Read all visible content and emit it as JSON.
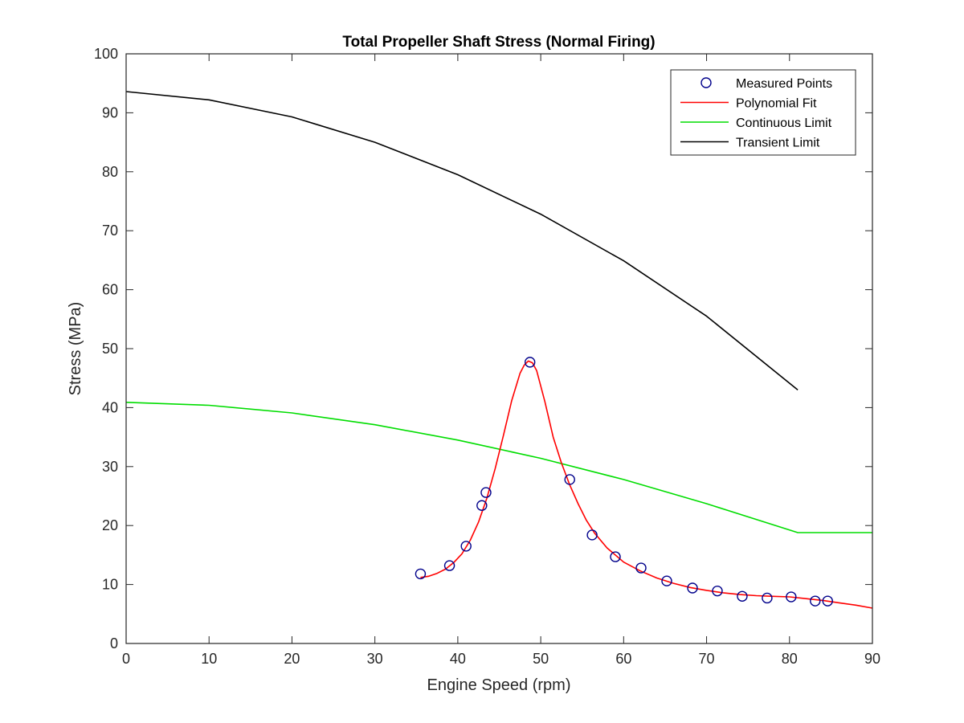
{
  "chart_data": {
    "type": "line",
    "title": "Total Propeller Shaft Stress (Normal Firing)",
    "xlabel": "Engine Speed (rpm)",
    "ylabel": "Stress (MPa)",
    "xlim": [
      0,
      90
    ],
    "ylim": [
      0,
      100
    ],
    "xticks": [
      0,
      10,
      20,
      30,
      40,
      50,
      60,
      70,
      80,
      90
    ],
    "yticks": [
      0,
      10,
      20,
      30,
      40,
      50,
      60,
      70,
      80,
      90,
      100
    ],
    "grid": false,
    "legend_position": "top-right",
    "series": [
      {
        "name": "Measured Points",
        "type": "scatter",
        "marker": "circle",
        "color": "#00008B",
        "x": [
          35.5,
          39.0,
          41.0,
          42.9,
          43.4,
          48.7,
          53.5,
          56.2,
          59.0,
          62.1,
          65.2,
          68.3,
          71.3,
          74.3,
          77.3,
          80.2,
          83.1,
          84.6
        ],
        "y": [
          11.8,
          13.2,
          16.5,
          23.4,
          25.6,
          47.7,
          27.8,
          18.4,
          14.7,
          12.8,
          10.6,
          9.4,
          8.9,
          8.0,
          7.7,
          7.9,
          7.2,
          7.2
        ]
      },
      {
        "name": "Polynomial Fit",
        "type": "line",
        "color": "#FF0000",
        "x": [
          35.5,
          36.5,
          37.5,
          38.5,
          39.5,
          40.5,
          41.5,
          42.5,
          43.5,
          44.5,
          45.5,
          46.5,
          47.5,
          48.0,
          48.5,
          49.0,
          49.5,
          50.5,
          51.5,
          52.5,
          53.5,
          54.5,
          55.5,
          56.5,
          58.0,
          60.0,
          62.0,
          64.0,
          66.0,
          68.0,
          70.0,
          72.0,
          74.0,
          76.0,
          78.0,
          80.0,
          82.0,
          84.0,
          86.0,
          88.0,
          90.0
        ],
        "y": [
          11.2,
          11.4,
          11.9,
          12.6,
          13.7,
          15.2,
          17.5,
          20.6,
          24.6,
          29.6,
          35.3,
          41.2,
          45.8,
          47.2,
          47.9,
          47.6,
          46.3,
          41.0,
          35.0,
          30.6,
          26.9,
          23.7,
          20.9,
          18.7,
          16.2,
          13.8,
          12.3,
          11.1,
          10.2,
          9.5,
          9.0,
          8.6,
          8.3,
          8.1,
          8.0,
          7.9,
          7.6,
          7.3,
          6.9,
          6.5,
          6.0
        ]
      },
      {
        "name": "Continuous Limit",
        "type": "line",
        "color": "#00DD00",
        "x": [
          0,
          10,
          20,
          30,
          40,
          50,
          60,
          70,
          81,
          90
        ],
        "y": [
          40.9,
          40.4,
          39.1,
          37.1,
          34.5,
          31.4,
          27.8,
          23.7,
          18.8,
          18.8
        ]
      },
      {
        "name": "Transient Limit",
        "type": "line",
        "color": "#000000",
        "x": [
          0,
          10,
          20,
          30,
          40,
          50,
          60,
          70,
          81
        ],
        "y": [
          93.6,
          92.2,
          89.3,
          85.0,
          79.5,
          72.8,
          64.9,
          55.5,
          43.0
        ]
      }
    ]
  }
}
